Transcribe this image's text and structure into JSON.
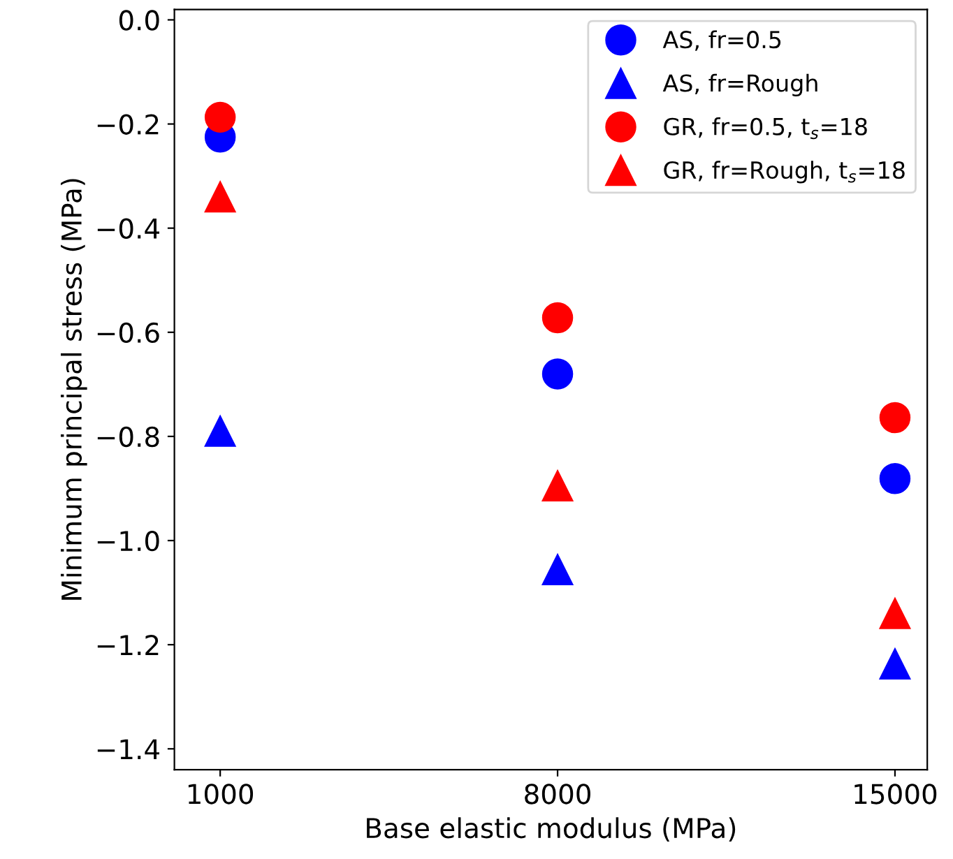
{
  "chart_data": {
    "type": "scatter",
    "xlabel": "Base elastic modulus (MPa)",
    "ylabel": "Minimum principal stress (MPa)",
    "x": [
      1000,
      8000,
      15000
    ],
    "xlim": [
      50,
      15670
    ],
    "xticks": [
      1000,
      8000,
      15000
    ],
    "ylim": [
      -1.44,
      0.02
    ],
    "yticks": [
      {
        "value": -1.4,
        "label": "−1.4"
      },
      {
        "value": -1.2,
        "label": "−1.2"
      },
      {
        "value": -1.0,
        "label": "−1.0"
      },
      {
        "value": -0.8,
        "label": "−0.8"
      },
      {
        "value": -0.6,
        "label": "−0.6"
      },
      {
        "value": -0.4,
        "label": "−0.4"
      },
      {
        "value": -0.2,
        "label": "−0.2"
      },
      {
        "value": 0.0,
        "label": "0.0"
      }
    ],
    "grid": false,
    "legend": "top right",
    "series": [
      {
        "name": "AS, fr=0.5",
        "color": "#0000ff",
        "marker": "circle",
        "values": [
          -0.225,
          -0.68,
          -0.881
        ]
      },
      {
        "name": "AS, fr=Rough",
        "color": "#0000ff",
        "marker": "triangle",
        "values": [
          -0.79,
          -1.056,
          -1.237
        ]
      },
      {
        "name": "GR, fr=0.5, t$_{s}$=18",
        "color": "#ff0000",
        "marker": "circle",
        "values": [
          -0.187,
          -0.572,
          -0.764
        ]
      },
      {
        "name": "GR, fr=Rough, t$_{s}$=18",
        "color": "#ff0000",
        "marker": "triangle",
        "values": [
          -0.34,
          -0.895,
          -1.14
        ]
      }
    ]
  }
}
